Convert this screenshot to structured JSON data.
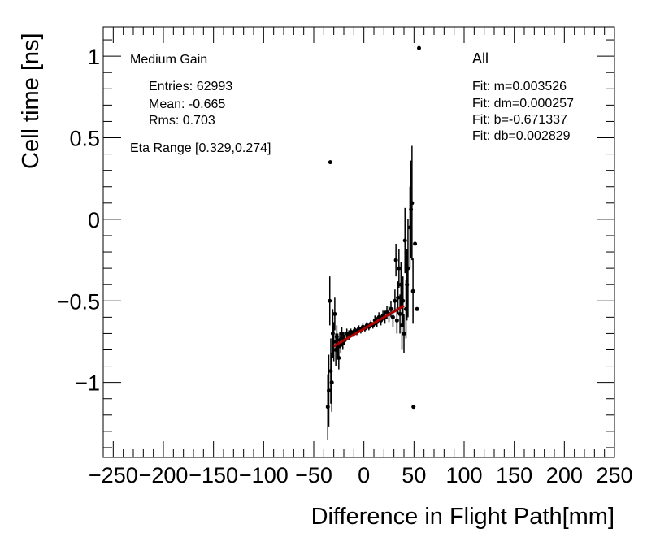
{
  "chart_data": {
    "type": "scatter",
    "xlabel": "Difference in Flight Path[mm]",
    "ylabel": "Cell time [ns]",
    "xlim": [
      -260,
      250
    ],
    "ylim": [
      -1.46,
      1.18
    ],
    "x_ticks": [
      -250,
      -200,
      -150,
      -100,
      -50,
      0,
      50,
      100,
      150,
      200,
      250
    ],
    "x_tick_labels": [
      "−250",
      "−200",
      "−150",
      "−100",
      "−50",
      "0",
      "50",
      "100",
      "150",
      "200",
      "250"
    ],
    "y_ticks": [
      -1,
      -0.5,
      0,
      0.5,
      1
    ],
    "y_tick_labels": [
      "−1",
      "−0.5",
      "0",
      "0.5",
      "1"
    ],
    "series": [
      {
        "name": "data",
        "points": [
          {
            "x": -36,
            "y": -1.15,
            "err": 0.2
          },
          {
            "x": -35,
            "y": -1.05,
            "err": 0.22
          },
          {
            "x": -34,
            "y": -0.5,
            "err": 0.15
          },
          {
            "x": -33.5,
            "y": 0.35,
            "err": 0
          },
          {
            "x": -33,
            "y": -0.93,
            "err": 0.2
          },
          {
            "x": -32,
            "y": -1.0,
            "err": 0.18
          },
          {
            "x": -31,
            "y": -0.7,
            "err": 0.15
          },
          {
            "x": -30,
            "y": -0.75,
            "err": 0.12
          },
          {
            "x": -29,
            "y": -0.58,
            "err": 0.1
          },
          {
            "x": -28,
            "y": -0.8,
            "err": 0.1
          },
          {
            "x": -27,
            "y": -0.72,
            "err": 0.07
          },
          {
            "x": -26,
            "y": -0.78,
            "err": 0.08
          },
          {
            "x": -25,
            "y": -0.85,
            "err": 0.07
          },
          {
            "x": -24,
            "y": -0.74,
            "err": 0.05
          },
          {
            "x": -23,
            "y": -0.77,
            "err": 0.05
          },
          {
            "x": -22,
            "y": -0.7,
            "err": 0.04
          },
          {
            "x": -21,
            "y": -0.76,
            "err": 0.04
          },
          {
            "x": -20,
            "y": -0.72,
            "err": 0.03
          },
          {
            "x": -19,
            "y": -0.74,
            "err": 0.03
          },
          {
            "x": -17,
            "y": -0.7,
            "err": 0.03
          },
          {
            "x": -15,
            "y": -0.71,
            "err": 0.03
          },
          {
            "x": -13,
            "y": -0.69,
            "err": 0.02
          },
          {
            "x": -11,
            "y": -0.7,
            "err": 0.02
          },
          {
            "x": -9,
            "y": -0.68,
            "err": 0.02
          },
          {
            "x": -7,
            "y": -0.69,
            "err": 0.02
          },
          {
            "x": -5,
            "y": -0.67,
            "err": 0.02
          },
          {
            "x": -3,
            "y": -0.68,
            "err": 0.02
          },
          {
            "x": -1,
            "y": -0.66,
            "err": 0.02
          },
          {
            "x": 1,
            "y": -0.67,
            "err": 0.02
          },
          {
            "x": 3,
            "y": -0.65,
            "err": 0.02
          },
          {
            "x": 5,
            "y": -0.66,
            "err": 0.02
          },
          {
            "x": 7,
            "y": -0.64,
            "err": 0.02
          },
          {
            "x": 9,
            "y": -0.65,
            "err": 0.02
          },
          {
            "x": 11,
            "y": -0.62,
            "err": 0.03
          },
          {
            "x": 13,
            "y": -0.63,
            "err": 0.03
          },
          {
            "x": 15,
            "y": -0.6,
            "err": 0.03
          },
          {
            "x": 17,
            "y": -0.62,
            "err": 0.03
          },
          {
            "x": 19,
            "y": -0.59,
            "err": 0.03
          },
          {
            "x": 21,
            "y": -0.6,
            "err": 0.04
          },
          {
            "x": 23,
            "y": -0.57,
            "err": 0.04
          },
          {
            "x": 25,
            "y": -0.58,
            "err": 0.05
          },
          {
            "x": 27,
            "y": -0.55,
            "err": 0.05
          },
          {
            "x": 29,
            "y": -0.6,
            "err": 0.06
          },
          {
            "x": 31,
            "y": -0.5,
            "err": 0.07
          },
          {
            "x": 32,
            "y": -0.25,
            "err": 0.1
          },
          {
            "x": 33,
            "y": -0.62,
            "err": 0.08
          },
          {
            "x": 34,
            "y": -0.48,
            "err": 0.1
          },
          {
            "x": 35,
            "y": -0.3,
            "err": 0.12
          },
          {
            "x": 36,
            "y": -0.58,
            "err": 0.12
          },
          {
            "x": 37,
            "y": -0.4,
            "err": 0.14
          },
          {
            "x": 38,
            "y": -0.65,
            "err": 0.15
          },
          {
            "x": 39,
            "y": -0.5,
            "err": 0.15
          },
          {
            "x": 40,
            "y": -0.7,
            "err": 0.12
          },
          {
            "x": 41,
            "y": -0.13,
            "err": 0.2
          },
          {
            "x": 42,
            "y": -0.55,
            "err": 0.18
          },
          {
            "x": 43,
            "y": -0.4,
            "err": 0.22
          },
          {
            "x": 44,
            "y": -0.3,
            "err": 0.3
          },
          {
            "x": 46,
            "y": -0.05,
            "err": 0.25
          },
          {
            "x": 47,
            "y": 0.06,
            "err": 0.3
          },
          {
            "x": 48,
            "y": 0.1,
            "err": 0.35
          },
          {
            "x": 49,
            "y": -0.44,
            "err": 0.2
          },
          {
            "x": 49.5,
            "y": -1.15,
            "err": 0
          },
          {
            "x": 51,
            "y": -0.15,
            "err": 0
          },
          {
            "x": 53,
            "y": -0.55,
            "err": 0
          },
          {
            "x": 55,
            "y": 1.05,
            "err": 0
          }
        ]
      }
    ],
    "fit": {
      "x_start": -30,
      "x_end": 40,
      "m": 0.003526,
      "b": -0.671337,
      "color": "#b00000"
    },
    "legend_left": {
      "title": "Medium Gain",
      "entries": "Entries: 62993",
      "mean": "Mean: -0.665",
      "rms": "Rms: 0.703",
      "eta": "Eta Range [0.329,0.274]"
    },
    "legend_right": {
      "title": "All",
      "fit_m": "Fit: m=0.003526",
      "fit_dm": "Fit: dm=0.000257",
      "fit_b": "Fit: b=-0.671337",
      "fit_db": "Fit: db=0.002829"
    }
  }
}
